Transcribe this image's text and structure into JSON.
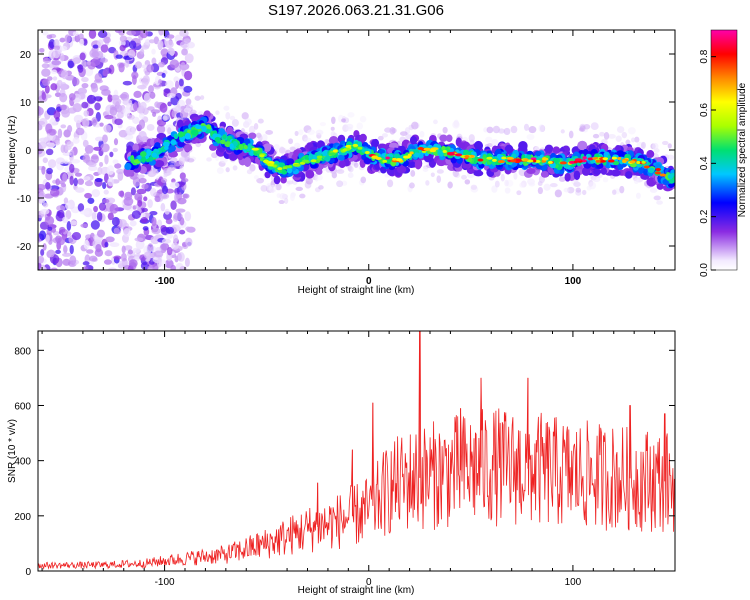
{
  "title": "S197.2026.063.21.31.G06",
  "chart_data": [
    {
      "type": "heatmap",
      "xlabel": "Height of straight line (km)",
      "ylabel": "Frequency (Hz)",
      "xlim": [
        -162,
        150
      ],
      "ylim": [
        -25,
        25
      ],
      "xticks": [
        -100,
        0,
        100
      ],
      "yticks": [
        -20,
        -10,
        0,
        10,
        20
      ],
      "colorbar": {
        "label": "Normalized spectral amplitude",
        "range": [
          0,
          0.9
        ],
        "ticks": [
          "0.0",
          "0.2",
          "0.4",
          "0.6",
          "0.8"
        ]
      },
      "ridge_x": [
        -115,
        -105,
        -95,
        -85,
        -80,
        -75,
        -65,
        -55,
        -48,
        -42,
        -35,
        -28,
        -20,
        -12,
        -6,
        0,
        8,
        16,
        25,
        35,
        45,
        55,
        65,
        75,
        85,
        95,
        105,
        115,
        125,
        135,
        140,
        148
      ],
      "ridge_y": [
        -2,
        -1,
        2,
        4,
        5,
        3,
        1,
        0,
        -3,
        -4,
        -3,
        -2,
        -1,
        0,
        1,
        -1,
        -2,
        -2,
        0,
        0,
        -1,
        -2,
        -2,
        -2,
        -2,
        -3,
        -2,
        -2,
        -2,
        -3,
        -4,
        -6
      ]
    },
    {
      "type": "line",
      "xlabel": "Height of straight line (km)",
      "ylabel": "SNR (10 * v/v)",
      "xlim": [
        -162,
        150
      ],
      "ylim": [
        0,
        870
      ],
      "xticks": [
        -100,
        0,
        100
      ],
      "yticks": [
        0,
        200,
        400,
        600,
        800
      ],
      "envelope_x": [
        -162,
        -130,
        -110,
        -90,
        -70,
        -50,
        -30,
        -15,
        0,
        10,
        20,
        40,
        60,
        80,
        100,
        120,
        140,
        150
      ],
      "envelope_y": [
        20,
        22,
        28,
        45,
        60,
        100,
        150,
        180,
        220,
        300,
        330,
        360,
        380,
        370,
        350,
        340,
        330,
        320
      ],
      "peaks": [
        {
          "x": -25,
          "y": 320
        },
        {
          "x": -8,
          "y": 440
        },
        {
          "x": 2,
          "y": 610
        },
        {
          "x": 25,
          "y": 870
        },
        {
          "x": 45,
          "y": 590
        },
        {
          "x": 55,
          "y": 700
        },
        {
          "x": 78,
          "y": 700
        },
        {
          "x": 128,
          "y": 600
        },
        {
          "x": 145,
          "y": 570
        }
      ]
    }
  ]
}
